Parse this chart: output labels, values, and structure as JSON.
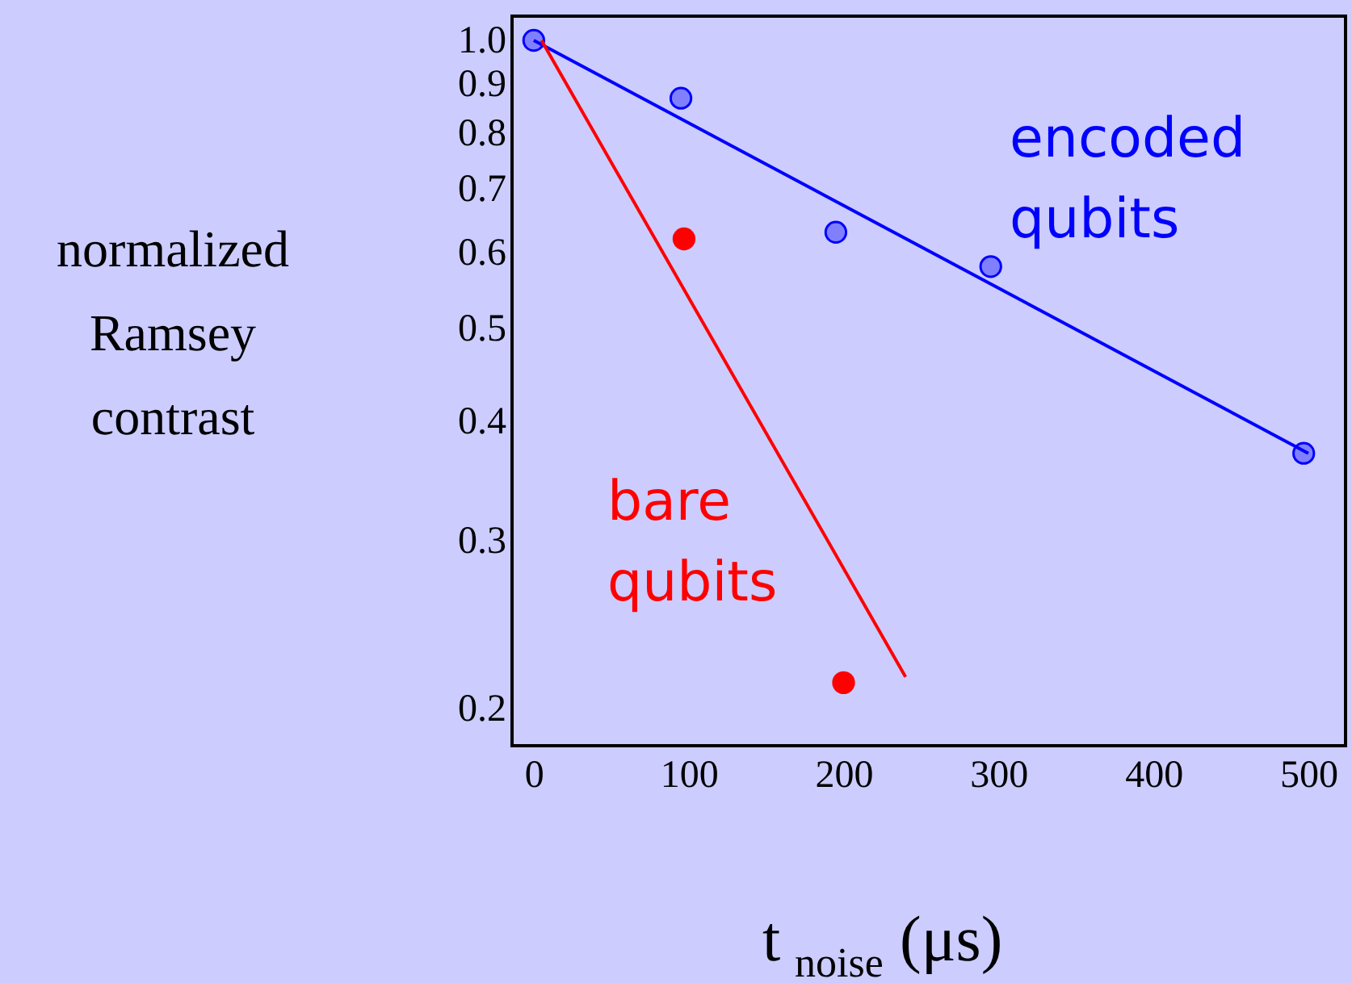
{
  "chart_data": {
    "type": "scatter",
    "xlabel": "t$_{noise}$ (μs)",
    "ylabel": "normalized Ramsey contrast",
    "series": [
      {
        "name": "encoded qubits",
        "marker": "circle",
        "color": "#8080ff",
        "x": [
          0,
          95,
          195,
          295,
          497
        ],
        "values": [
          1.0,
          0.87,
          0.63,
          0.58,
          0.37
        ]
      },
      {
        "name": "bare qubits",
        "marker": "circle",
        "color": "#ff0000",
        "x": [
          97,
          200
        ],
        "values": [
          0.62,
          0.213
        ]
      },
      {
        "type": "line",
        "marker": "none",
        "line_style": "solid",
        "color": "#0000ff",
        "x": [
          0,
          500
        ],
        "values": [
          1.0,
          0.37
        ]
      },
      {
        "type": "line",
        "marker": "none",
        "line_style": "solid",
        "color": "#ff0000",
        "x": [
          5,
          240
        ],
        "values": [
          1.0,
          0.216
        ]
      }
    ],
    "xlim": [
      -14,
      524
    ],
    "xticks": [
      0,
      100,
      200,
      300,
      400,
      500
    ],
    "ylim": [
      0.183,
      1.06
    ],
    "yticks": [
      0.2,
      0.3,
      0.4,
      0.5,
      0.6,
      0.7,
      0.8,
      0.9,
      {
        "value": 1.0,
        "label": "1.0"
      }
    ],
    "log": "y",
    "grid": false
  }
}
